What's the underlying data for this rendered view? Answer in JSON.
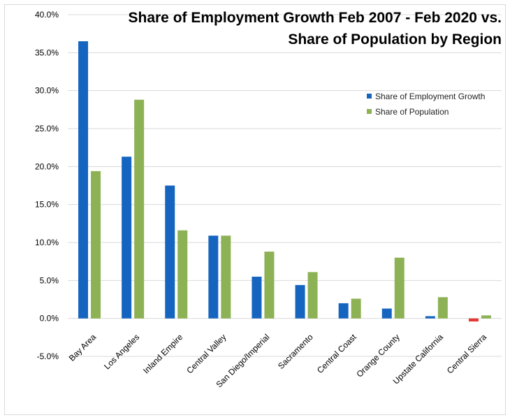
{
  "chart_data": {
    "type": "bar",
    "title_lines": [
      "Share of Employment Growth Feb 2007 - Feb 2020 vs.",
      "Share of Population by Region"
    ],
    "categories": [
      "Bay Area",
      "Los Angeles",
      "Inland Empire",
      "Central Valley",
      "San Diego/Imperial",
      "Sacramento",
      "Central Coast",
      "Orange County",
      "Upstate California",
      "Central Sierra"
    ],
    "series": [
      {
        "name": "Share of Employment Growth",
        "color": "#1565c0",
        "negative_color": "#e53935",
        "values": [
          36.5,
          21.3,
          17.5,
          10.9,
          5.5,
          4.4,
          2.0,
          1.3,
          0.3,
          -0.4
        ]
      },
      {
        "name": "Share of Population",
        "color": "#8db255",
        "values": [
          19.4,
          28.8,
          11.6,
          10.9,
          8.8,
          6.1,
          2.6,
          8.0,
          2.8,
          0.4
        ]
      }
    ],
    "ylim": [
      -5,
      40
    ],
    "yticks": [
      -5,
      0,
      5,
      10,
      15,
      20,
      25,
      30,
      35,
      40
    ],
    "ytick_labels": [
      "-5.0%",
      "0.0%",
      "5.0%",
      "10.0%",
      "15.0%",
      "20.0%",
      "25.0%",
      "30.0%",
      "35.0%",
      "40.0%"
    ],
    "grid": true,
    "legend_position": "top-right",
    "xlabel": "",
    "ylabel": ""
  }
}
